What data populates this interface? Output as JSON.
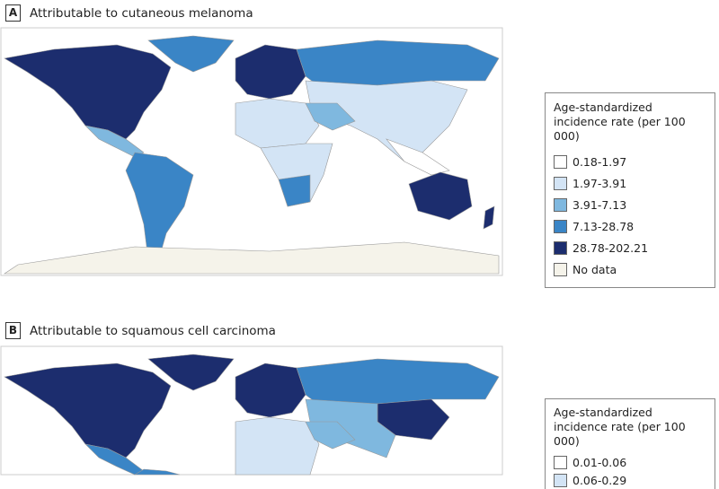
{
  "panels": [
    {
      "label": "A",
      "title": "Attributable to cutaneous melanoma",
      "legend": {
        "title_line1": "Age-standardized",
        "title_line2": "incidence rate (per 100 000)",
        "items": [
          {
            "label": "0.18-1.97",
            "color": "#ffffff"
          },
          {
            "label": "1.97-3.91",
            "color": "#d3e4f5"
          },
          {
            "label": "3.91-7.13",
            "color": "#7fb8df"
          },
          {
            "label": "7.13-28.78",
            "color": "#3a85c6"
          },
          {
            "label": "28.78-202.21",
            "color": "#1c2d6e"
          },
          {
            "label": "No data",
            "color": "#f5f3ea"
          }
        ]
      }
    },
    {
      "label": "B",
      "title": "Attributable to squamous cell carcinoma",
      "legend": {
        "title_line1": "Age-standardized",
        "title_line2": "incidence rate (per 100 000)",
        "items": [
          {
            "label": "0.01-0.06",
            "color": "#ffffff"
          },
          {
            "label": "0.06-0.29",
            "color": "#d3e4f5"
          }
        ]
      }
    }
  ]
}
